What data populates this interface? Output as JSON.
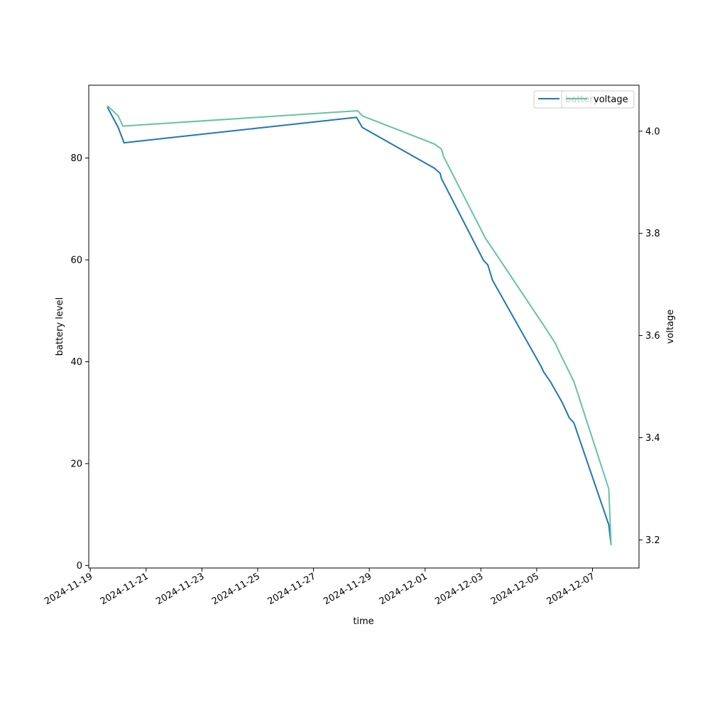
{
  "chart_data": {
    "type": "line",
    "xlabel": "time",
    "ylabel_left": "battery level",
    "ylabel_right": "voltage",
    "x_ticks": [
      "2024-11-19",
      "2024-11-21",
      "2024-11-23",
      "2024-11-25",
      "2024-11-27",
      "2024-11-29",
      "2024-12-01",
      "2024-12-03",
      "2024-12-05",
      "2024-12-07"
    ],
    "y_left_ticks": [
      "0",
      "20",
      "40",
      "60",
      "80"
    ],
    "y_right_ticks": [
      "3.2",
      "3.4",
      "3.6",
      "3.8",
      "4.0"
    ],
    "xlim": [
      "2024-11-18 22:40",
      "2024-12-08 16:00"
    ],
    "ylim_left": [
      -0.5,
      94.3
    ],
    "ylim_right": [
      3.145,
      4.09
    ],
    "legend_position": "top-right",
    "grid": false,
    "series": [
      {
        "name": "battery",
        "axis": "left",
        "color": "#1f77b4",
        "points": [
          [
            "2024-11-19 14:40",
            90
          ],
          [
            "2024-11-20 00:00",
            86
          ],
          [
            "2024-11-20 05:00",
            83
          ],
          [
            "2024-11-28 13:00",
            88
          ],
          [
            "2024-11-28 18:00",
            86
          ],
          [
            "2024-12-01 08:00",
            78
          ],
          [
            "2024-12-01 13:00",
            77
          ],
          [
            "2024-12-01 14:00",
            76
          ],
          [
            "2024-12-03 02:00",
            60
          ],
          [
            "2024-12-03 06:00",
            59
          ],
          [
            "2024-12-03 10:00",
            56
          ],
          [
            "2024-12-05 04:00",
            39
          ],
          [
            "2024-12-05 06:00",
            38
          ],
          [
            "2024-12-05 12:00",
            36
          ],
          [
            "2024-12-05 22:00",
            32
          ],
          [
            "2024-12-06 04:00",
            29
          ],
          [
            "2024-12-06 08:00",
            28
          ],
          [
            "2024-12-07 14:00",
            8
          ],
          [
            "2024-12-07 16:00",
            4
          ]
        ]
      },
      {
        "name": "voltage",
        "axis": "right",
        "color": "#66c2a5",
        "points": [
          [
            "2024-11-19 14:40",
            4.05
          ],
          [
            "2024-11-20 00:00",
            4.03
          ],
          [
            "2024-11-20 04:00",
            4.01
          ],
          [
            "2024-11-28 14:00",
            4.04
          ],
          [
            "2024-11-28 18:00",
            4.03
          ],
          [
            "2024-12-01 08:00",
            3.975
          ],
          [
            "2024-12-01 14:00",
            3.965
          ],
          [
            "2024-12-01 16:00",
            3.95
          ],
          [
            "2024-12-03 04:00",
            3.79
          ],
          [
            "2024-12-03 10:00",
            3.77
          ],
          [
            "2024-12-05 06:00",
            3.62
          ],
          [
            "2024-12-05 16:00",
            3.585
          ],
          [
            "2024-12-05 20:00",
            3.565
          ],
          [
            "2024-12-06 08:00",
            3.51
          ],
          [
            "2024-12-07 14:00",
            3.3
          ],
          [
            "2024-12-07 16:00",
            3.19
          ]
        ]
      }
    ]
  }
}
